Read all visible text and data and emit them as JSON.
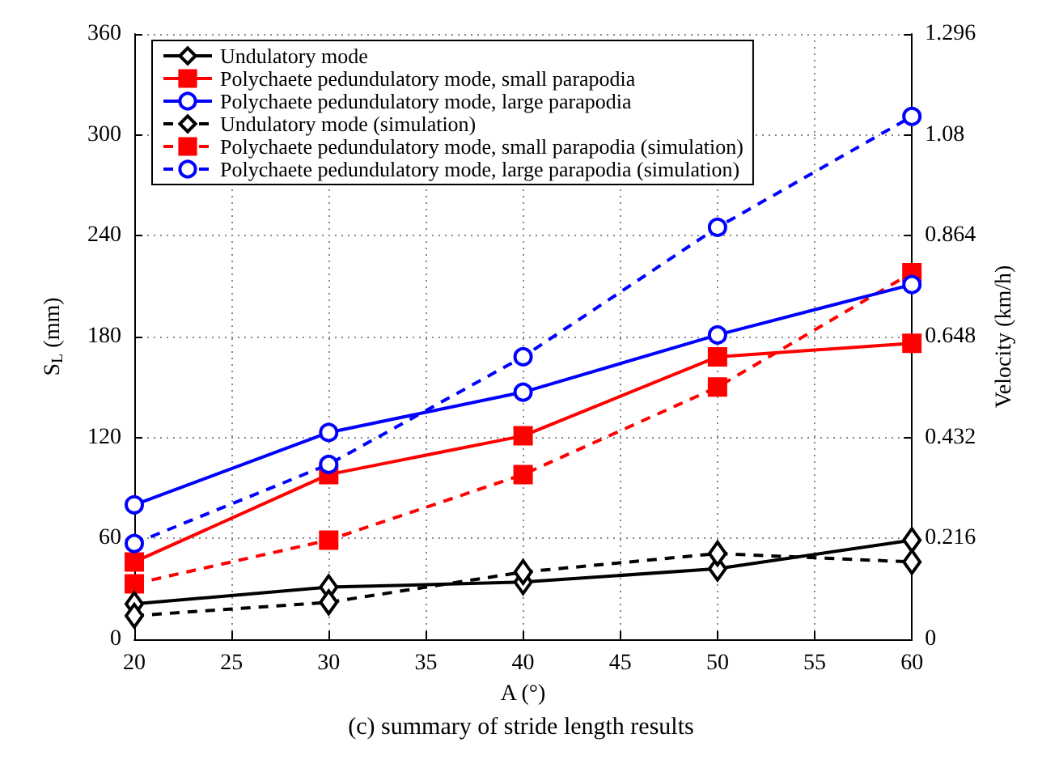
{
  "chart_data": {
    "type": "line",
    "xlabel": "A (°)",
    "ylabel": "S$_{L}$ (mm)",
    "y2label": "Velocity (km/h)",
    "annotations": [
      "(c) summary of stride length results"
    ],
    "x": [
      20,
      30,
      40,
      50,
      60
    ],
    "xlim": [
      20,
      60
    ],
    "xticks": [
      20,
      25,
      30,
      35,
      40,
      45,
      50,
      55,
      60
    ],
    "ylim": [
      0,
      360
    ],
    "yticks": [
      0,
      60,
      120,
      180,
      240,
      300,
      360
    ],
    "y2lim": [
      0,
      1.296
    ],
    "y2ticks": [
      0,
      0.216,
      0.432,
      0.648,
      0.864,
      1.08,
      1.296
    ],
    "grid": true,
    "legend": "top left",
    "series": [
      {
        "name": "Undulatory mode",
        "color": "#000000",
        "marker": "diamond",
        "line_style": "solid",
        "values": [
          21,
          31,
          34,
          42,
          59
        ]
      },
      {
        "name": "Polychaete pedundulatory mode, small parapodia",
        "color": "#ff0000",
        "marker": "square",
        "line_style": "solid",
        "values": [
          46,
          98,
          121,
          168,
          176
        ]
      },
      {
        "name": "Polychaete pedundulatory mode, large parapodia",
        "color": "#0000ff",
        "marker": "circle",
        "line_style": "solid",
        "values": [
          80,
          123,
          147,
          181,
          211
        ]
      },
      {
        "name": "Undulatory mode (simulation)",
        "color": "#000000",
        "marker": "diamond",
        "line_style": "dashed",
        "values": [
          14,
          22,
          40,
          51,
          46
        ]
      },
      {
        "name": "Polychaete pedundulatory mode, small parapodia (simulation)",
        "color": "#ff0000",
        "marker": "square",
        "line_style": "dashed",
        "values": [
          33,
          59,
          98,
          150,
          218
        ]
      },
      {
        "name": "Polychaete pedundulatory mode, large parapodia (simulation)",
        "color": "#0000ff",
        "marker": "circle",
        "line_style": "dashed",
        "values": [
          57,
          104,
          168,
          245,
          311
        ]
      }
    ]
  }
}
